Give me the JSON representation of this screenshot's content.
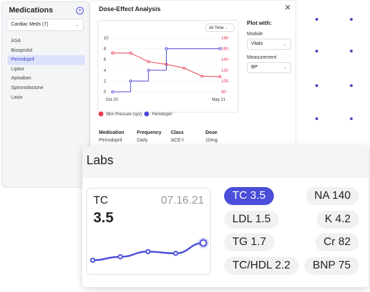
{
  "medications": {
    "title": "Medications",
    "filter": "Cardiac Meds (7)",
    "items": [
      "ASA",
      "Bisoprolol",
      "Perindopril",
      "Lipitor",
      "Apixaban",
      "Spironolactone",
      "Lasix"
    ],
    "selected": 2
  },
  "analysis": {
    "title": "Dose-Effect Analysis",
    "range_filter": "All Time",
    "chart_data": {
      "type": "line",
      "categories": [
        "Oct 20",
        null,
        null,
        null,
        null,
        null,
        "May 21"
      ],
      "series": [
        {
          "name": "Blor Pressure (sys)",
          "color": "#e8364f",
          "axis": "y2",
          "values": [
            152,
            152,
            136,
            131,
            124,
            109,
            108
          ]
        },
        {
          "name": "Perindopril",
          "color": "#4a45d6",
          "step": true,
          "values": [
            0,
            2,
            4,
            8,
            null,
            null,
            8
          ]
        }
      ],
      "ylim": [
        0,
        10
      ],
      "yticks": [
        0,
        2,
        4,
        6,
        8,
        10
      ],
      "y2lim": [
        80,
        180
      ],
      "y2ticks": [
        80,
        100,
        120,
        140,
        160,
        180
      ],
      "grid": true
    },
    "table": {
      "headers": [
        "Medication",
        "Frequency",
        "Class",
        "Dose"
      ],
      "rows": [
        [
          "Perindopril",
          "Daily",
          "ACE-I",
          "10mg"
        ]
      ]
    },
    "plot_with": {
      "title": "Plot with:",
      "module_label": "Module",
      "module": "Vitals",
      "measurement_label": "Measurement",
      "measurement": "BP"
    }
  },
  "labs": {
    "title": "Labs",
    "card": {
      "name": "TC",
      "date": "07.16.21",
      "value": 3.5,
      "trend": {
        "type": "line",
        "values": [
          3.0,
          3.1,
          3.25,
          3.2,
          3.5
        ],
        "ylim": [
          2.8,
          3.6
        ],
        "color": "#4a4ed8"
      }
    },
    "results": [
      "TC 3.5",
      "LDL 1.5",
      "TG 1.7",
      "TC/HDL 2.2",
      "NA 140",
      "K 4.2",
      "Cr 82",
      "BNP 75"
    ],
    "selected": 0
  }
}
